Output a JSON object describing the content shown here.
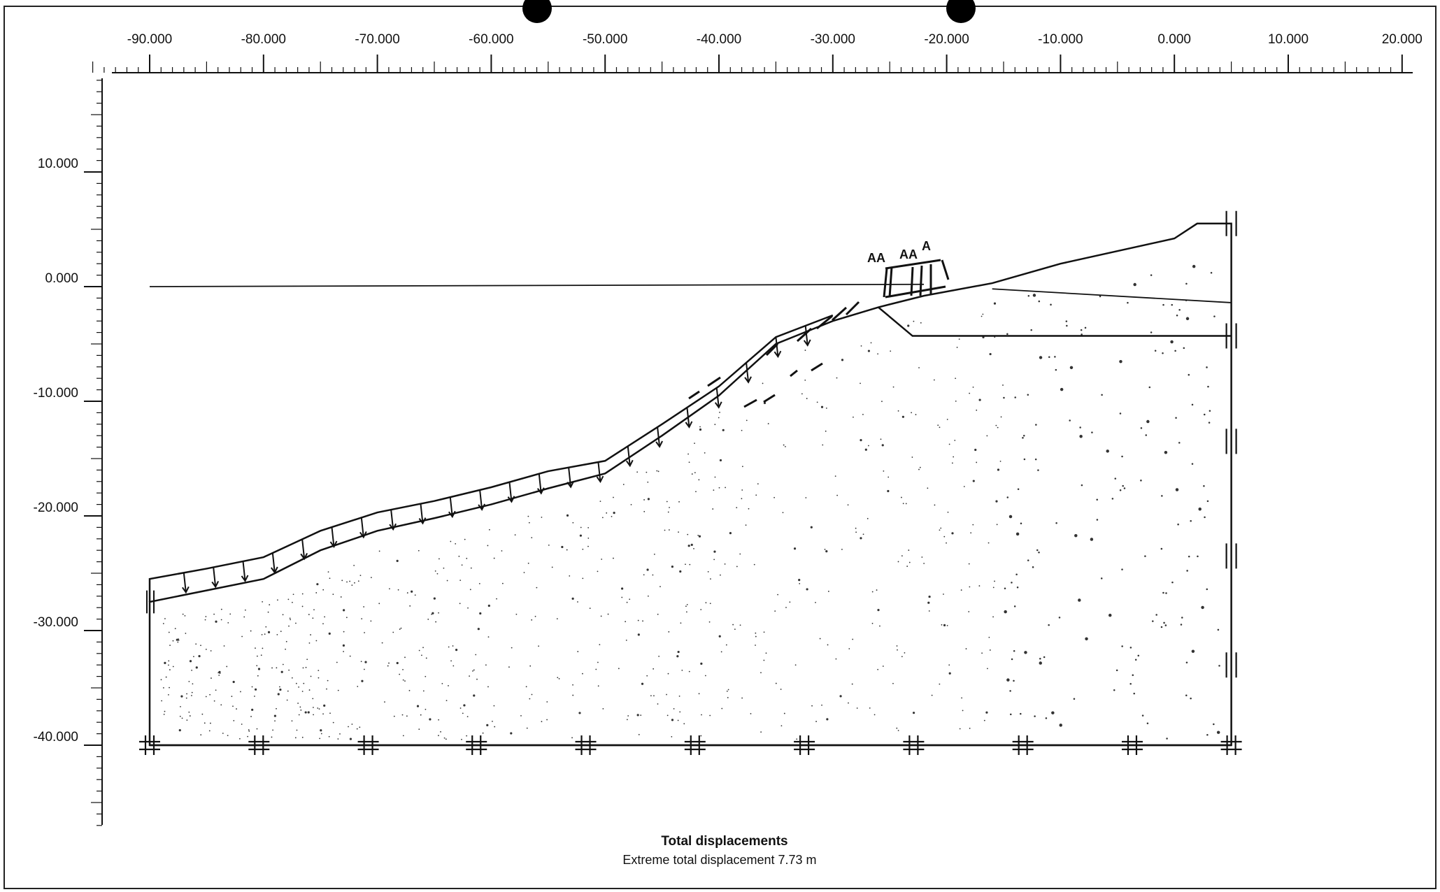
{
  "x_axis": {
    "labels": [
      "-90.000",
      "-80.000",
      "-70.000",
      "-60.000",
      "-50.000",
      "-40.000",
      "-30.000",
      "-20.000",
      "-10.000",
      "0.000",
      "10.000",
      "20.000"
    ],
    "values": [
      -90,
      -80,
      -70,
      -60,
      -50,
      -40,
      -30,
      -20,
      -10,
      0,
      10,
      20
    ]
  },
  "y_axis": {
    "labels": [
      "10.000",
      "0.000",
      "-10.000",
      "-20.000",
      "-30.000",
      "-40.000"
    ],
    "values": [
      10,
      0,
      -10,
      -20,
      -30,
      -40
    ]
  },
  "caption": {
    "title": "Total displacements",
    "subtitle": "Extreme total displacement 7.73 m"
  },
  "anchor_labels": [
    "AA",
    "AA",
    "A"
  ],
  "model": {
    "ground_surface": [
      [
        -90,
        -27.5
      ],
      [
        -85,
        -26.5
      ],
      [
        -80,
        -25.5
      ],
      [
        -75,
        -23
      ],
      [
        -70,
        -21.3
      ],
      [
        -65,
        -20.2
      ],
      [
        -60,
        -19
      ],
      [
        -55,
        -17.6
      ],
      [
        -50,
        -16.3
      ],
      [
        -45,
        -13
      ],
      [
        -40,
        -9.5
      ],
      [
        -35,
        -5
      ],
      [
        -30,
        -3
      ],
      [
        -26,
        -1.8
      ],
      [
        -22,
        -0.8
      ],
      [
        -16,
        0.3
      ],
      [
        -10,
        2
      ],
      [
        0,
        4.2
      ],
      [
        2,
        5.5
      ],
      [
        5,
        5.5
      ]
    ],
    "water_level": 0,
    "bottom": -40,
    "left_edge": -90,
    "right_edge": 5,
    "fill_layer_base": -4.3,
    "fixity_x": [
      -90,
      -80.4,
      -70.8,
      -61.3,
      -51.7,
      -42.1,
      -32.5,
      -22.9,
      -13.3,
      -3.7,
      5
    ]
  },
  "colors": {
    "line": "#111111",
    "background": "#ffffff"
  }
}
